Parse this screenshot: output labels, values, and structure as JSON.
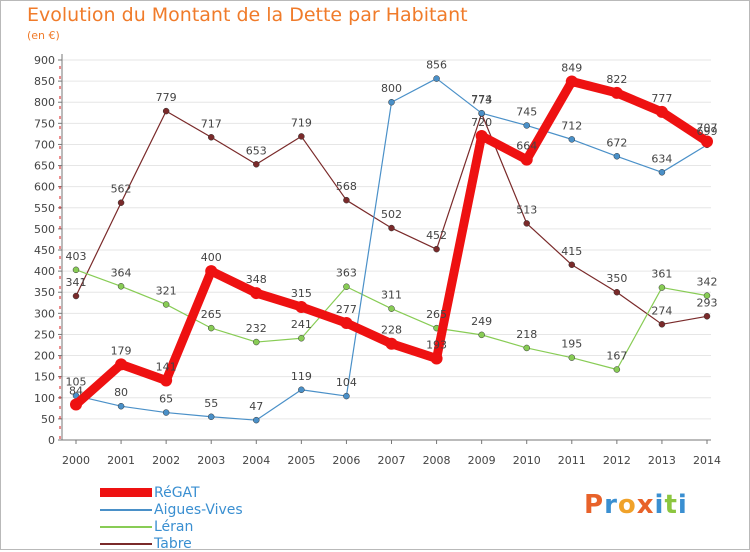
{
  "header": {
    "title": "Evolution du Montant de la Dette par Habitant",
    "subtitle": "(en €)"
  },
  "logo": {
    "text": "Proxiti",
    "colors": [
      "#e8622a",
      "#3a8fd1",
      "#f0a22a",
      "#e8622a",
      "#3a8fd1",
      "#8cc63f",
      "#3a8fd1"
    ]
  },
  "colors": {
    "title": "#f07b2a",
    "axis": "#777777",
    "grid_accent": "#d91d1d"
  },
  "chart_data": {
    "type": "line",
    "title": "Evolution du Montant de la Dette par Habitant",
    "subtitle": "(en €)",
    "xlabel": "",
    "ylabel": "",
    "ylim": [
      0,
      900
    ],
    "yticks": [
      0,
      50,
      100,
      150,
      200,
      250,
      300,
      350,
      400,
      450,
      500,
      550,
      600,
      650,
      700,
      750,
      800,
      850,
      900
    ],
    "x": [
      "2000",
      "2001",
      "2002",
      "2003",
      "2004",
      "2005",
      "2006",
      "2007",
      "2008",
      "2009",
      "2010",
      "2011",
      "2012",
      "2013",
      "2014"
    ],
    "legend_position": "bottom-left",
    "series": [
      {
        "name": "RéGAT",
        "color": "#ee1111",
        "values": [
          84,
          179,
          141,
          400,
          348,
          315,
          277,
          228,
          193,
          720,
          664,
          849,
          822,
          777,
          707
        ]
      },
      {
        "name": "Aigues-Vives",
        "color": "#4a90c8",
        "values": [
          105,
          80,
          65,
          55,
          47,
          119,
          104,
          800,
          856,
          774,
          745,
          712,
          672,
          634,
          699
        ]
      },
      {
        "name": "Léran",
        "color": "#88cc55",
        "values": [
          403,
          364,
          321,
          265,
          232,
          241,
          363,
          311,
          265,
          249,
          218,
          195,
          167,
          361,
          342
        ]
      },
      {
        "name": "Tabre",
        "color": "#7a2a2a",
        "values": [
          341,
          562,
          779,
          717,
          653,
          719,
          568,
          502,
          452,
          773,
          513,
          415,
          350,
          274,
          293
        ]
      }
    ]
  }
}
